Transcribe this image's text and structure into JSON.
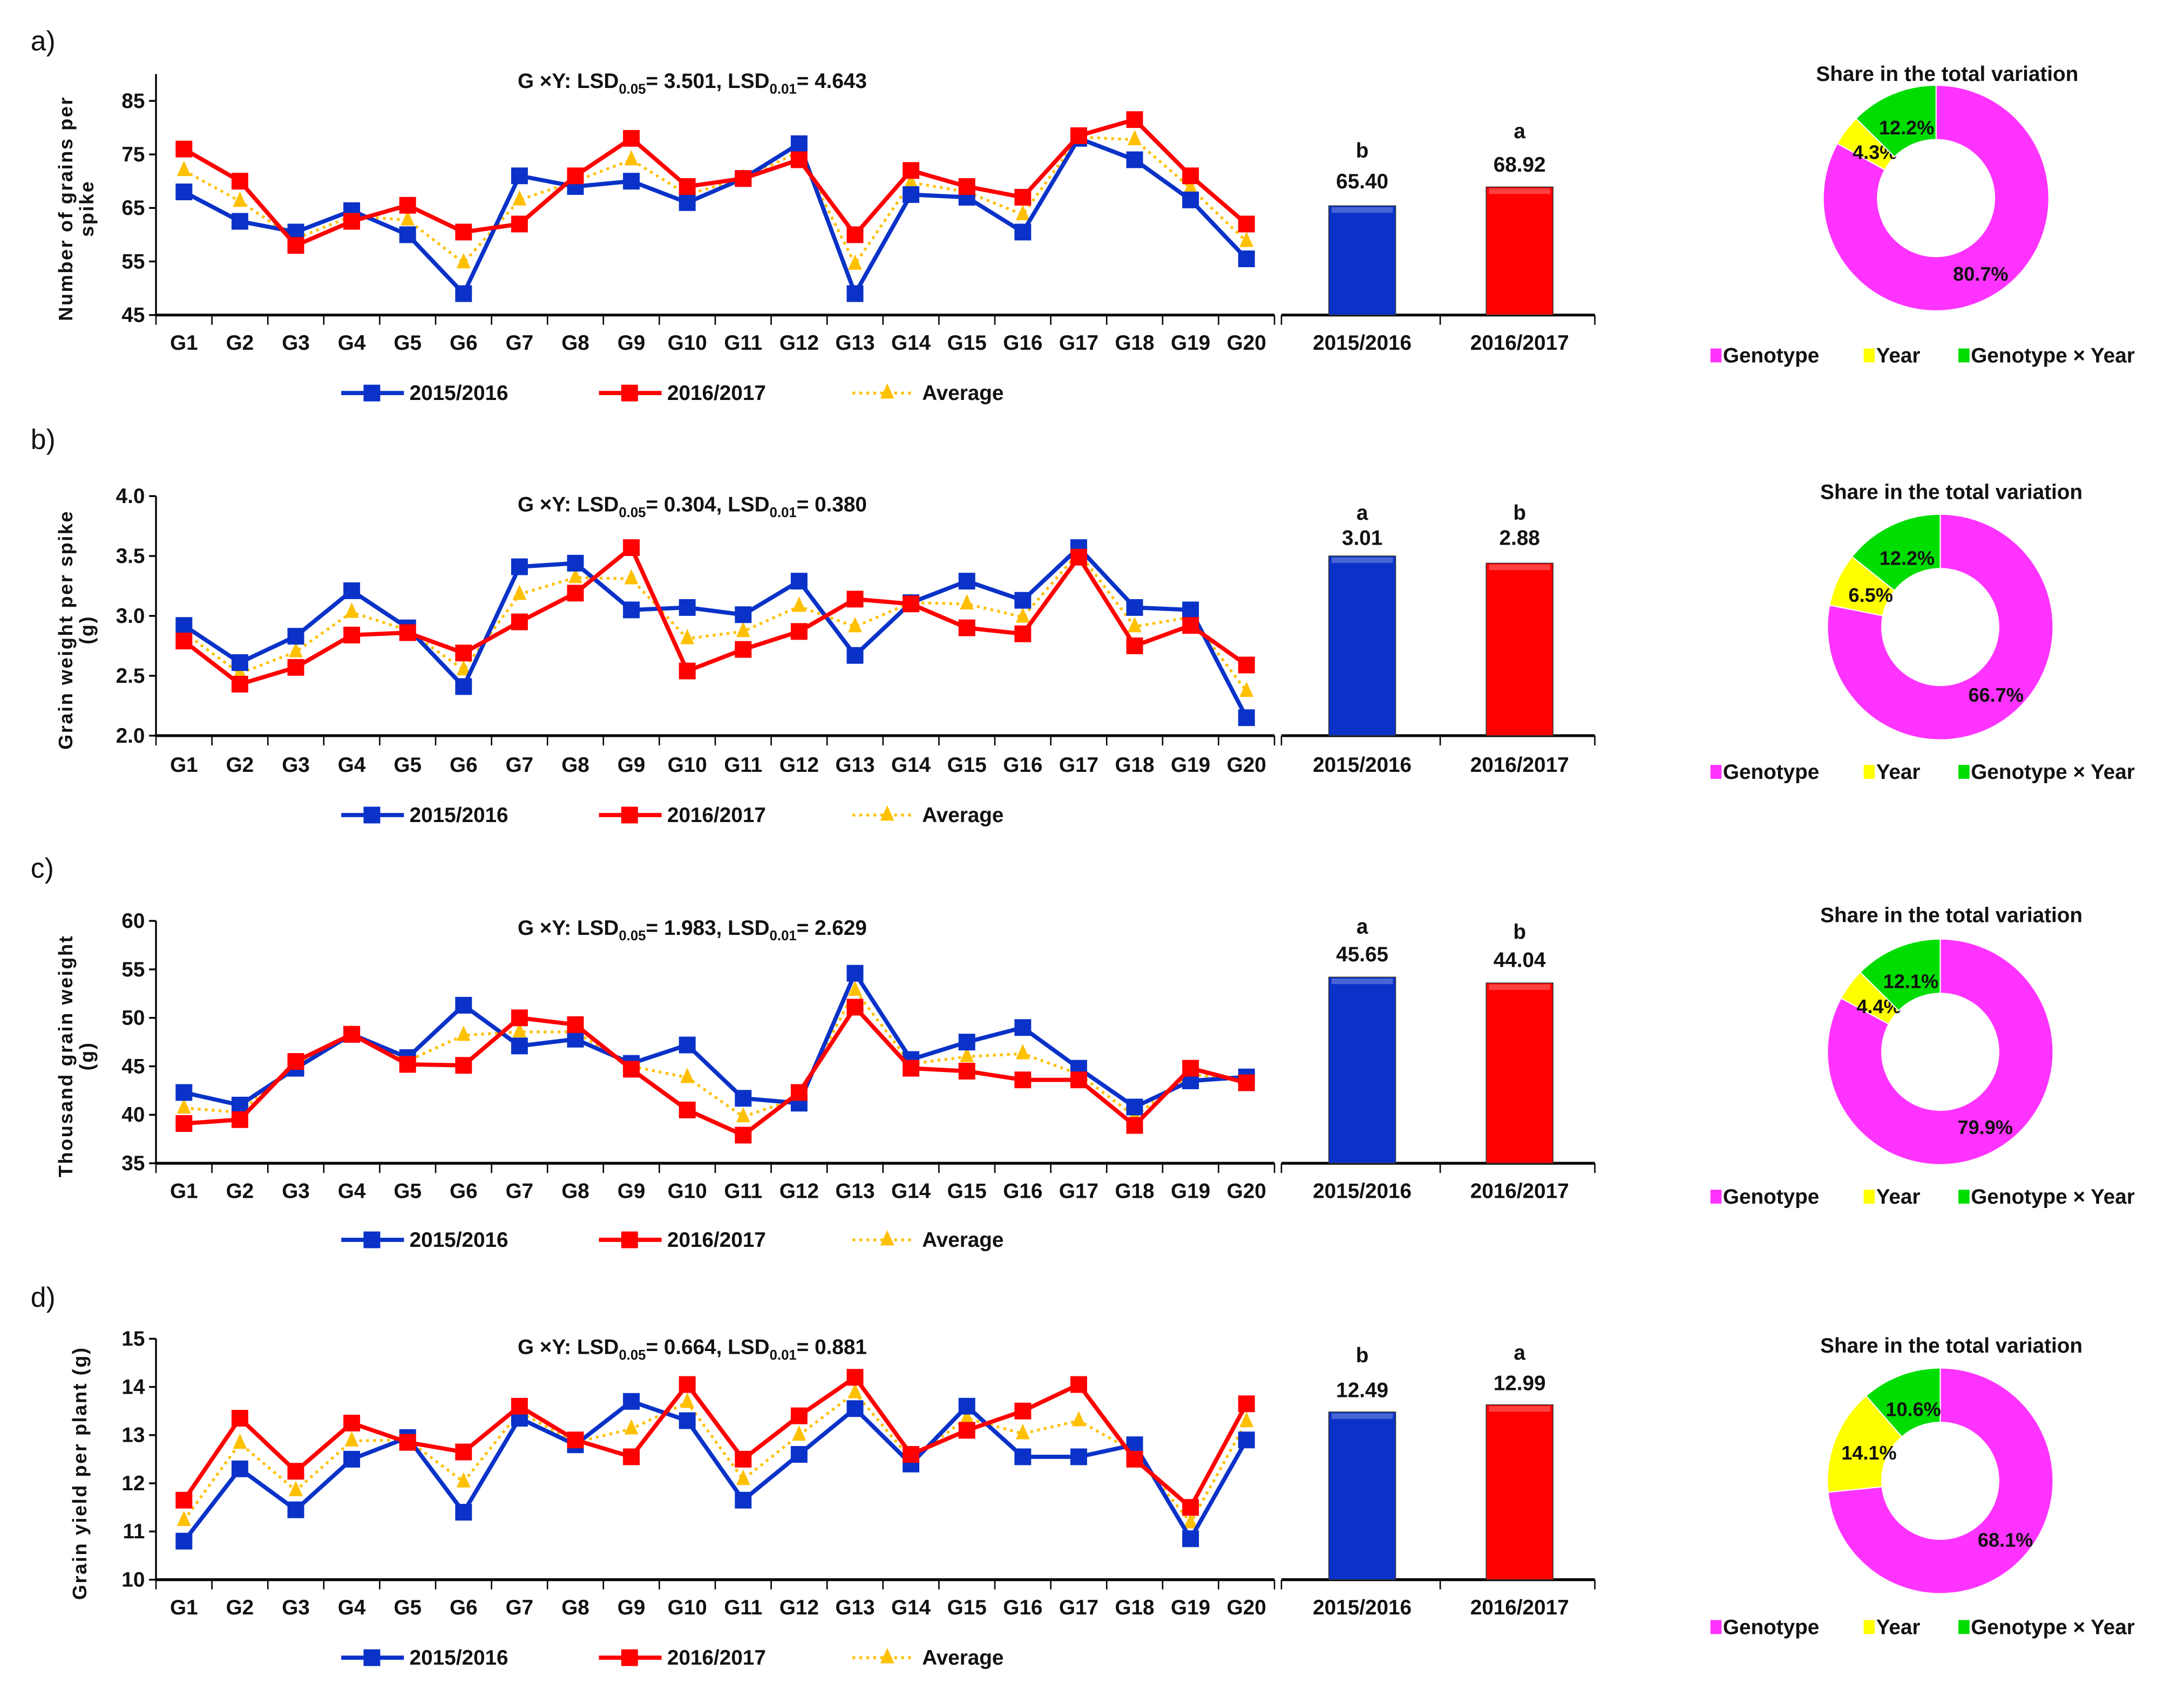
{
  "chart_data": [
    {
      "type": "line",
      "panel_label": "a)",
      "title_prefix": "G ×Y: LSD",
      "lsd05_sub": "0.05",
      "lsd05_value": "= 3.501, LSD",
      "lsd01_sub": "0.01",
      "lsd01_value": "= 4.643",
      "ylabel": [
        "Number of grains per",
        "spike"
      ],
      "ylim": [
        45,
        90
      ],
      "yticks": [
        45,
        55,
        65,
        75,
        85
      ],
      "yticklabels": [
        "45",
        "55",
        "65",
        "75",
        "85"
      ],
      "categories": [
        "G1",
        "G2",
        "G3",
        "G4",
        "G5",
        "G6",
        "G7",
        "G8",
        "G9",
        "G10",
        "G11",
        "G12",
        "G13",
        "G14",
        "G15",
        "G16",
        "G17",
        "G18",
        "G19",
        "G20"
      ],
      "series": [
        {
          "name": "2015/2016",
          "color": "#0a32c8",
          "values": [
            68,
            62.5,
            60.5,
            64.5,
            60,
            49,
            71,
            69,
            70,
            66,
            70.5,
            77,
            49,
            67.5,
            67,
            60.5,
            78,
            74,
            66.5,
            55.5
          ]
        },
        {
          "name": "2016/2017",
          "color": "#ff0000",
          "values": [
            76,
            70,
            58,
            62.5,
            65.5,
            60.5,
            62,
            71,
            78,
            69,
            70.5,
            74,
            60,
            72,
            69,
            67,
            78.5,
            81.5,
            71,
            62
          ]
        },
        {
          "name": "Average",
          "color": "#ffc000",
          "values": [
            72,
            66.25,
            59.25,
            63.5,
            62.75,
            54.75,
            66.5,
            70,
            74,
            67.5,
            70.5,
            75.5,
            54.5,
            69.75,
            68,
            63.75,
            78.25,
            77.75,
            68.75,
            58.75
          ]
        }
      ],
      "bars": [
        {
          "category": "2015/2016",
          "value": "65.40",
          "letter": "b",
          "drawn_level": 65.4,
          "color": "#0a32c8"
        },
        {
          "category": "2016/2017",
          "value": "68.92",
          "letter": "a",
          "drawn_level": 68.92,
          "color": "#ff0000"
        }
      ],
      "pie": {
        "title": "Share in the total variation",
        "slices": [
          {
            "name": "Genotype",
            "value": 80.7,
            "label": "80.7%",
            "color": "#ff33ff"
          },
          {
            "name": "Year",
            "value": 4.3,
            "label": "4.3%",
            "color": "#ffff00"
          },
          {
            "name": "Genotype × Year",
            "value": 12.2,
            "label": "12.2%",
            "color": "#00dd00"
          }
        ]
      }
    },
    {
      "type": "line",
      "panel_label": "b)",
      "title_prefix": "G ×Y: LSD",
      "lsd05_sub": "0.05",
      "lsd05_value": "= 0.304, LSD",
      "lsd01_sub": "0.01",
      "lsd01_value": "= 0.380",
      "ylabel": [
        "Grain weight per spike",
        "(g)"
      ],
      "ylim": [
        2.0,
        4.0
      ],
      "yticks": [
        2.0,
        2.5,
        3.0,
        3.5,
        4.0
      ],
      "yticklabels": [
        "2.0",
        "2.5",
        "3.0",
        "3.5",
        "4.0"
      ],
      "categories": [
        "G1",
        "G2",
        "G3",
        "G4",
        "G5",
        "G6",
        "G7",
        "G8",
        "G9",
        "G10",
        "G11",
        "G12",
        "G13",
        "G14",
        "G15",
        "G16",
        "G17",
        "G18",
        "G19",
        "G20"
      ],
      "series": [
        {
          "name": "2015/2016",
          "color": "#0a32c8",
          "values": [
            2.92,
            2.61,
            2.83,
            3.21,
            2.9,
            2.41,
            3.41,
            3.44,
            3.05,
            3.07,
            3.01,
            3.29,
            2.67,
            3.11,
            3.29,
            3.13,
            3.57,
            3.07,
            3.05,
            2.15
          ]
        },
        {
          "name": "2016/2017",
          "color": "#ff0000",
          "values": [
            2.79,
            2.43,
            2.57,
            2.84,
            2.86,
            2.69,
            2.95,
            3.19,
            3.57,
            2.54,
            2.72,
            2.87,
            3.14,
            3.1,
            2.9,
            2.85,
            3.49,
            2.75,
            2.92,
            2.59
          ]
        },
        {
          "name": "Average",
          "color": "#ffc000",
          "values": [
            2.86,
            2.52,
            2.7,
            3.03,
            2.88,
            2.55,
            3.18,
            3.32,
            3.31,
            2.81,
            2.87,
            3.08,
            2.91,
            3.11,
            3.1,
            2.99,
            3.53,
            2.91,
            2.99,
            2.37
          ]
        }
      ],
      "bars": [
        {
          "category": "2015/2016",
          "value": "3.01",
          "letter": "a",
          "drawn_level": 3.5,
          "color": "#0a32c8"
        },
        {
          "category": "2016/2017",
          "value": "2.88",
          "letter": "b",
          "drawn_level": 3.44,
          "color": "#ff0000"
        }
      ],
      "pie": {
        "title": "Share in the total variation",
        "slices": [
          {
            "name": "Genotype",
            "value": 66.7,
            "label": "66.7%",
            "color": "#ff33ff"
          },
          {
            "name": "Year",
            "value": 6.5,
            "label": "6.5%",
            "color": "#ffff00"
          },
          {
            "name": "Genotype × Year",
            "value": 12.2,
            "label": "12.2%",
            "color": "#00dd00"
          }
        ]
      }
    },
    {
      "type": "line",
      "panel_label": "c)",
      "title_prefix": "G ×Y: LSD",
      "lsd05_sub": "0.05",
      "lsd05_value": "= 1.983, LSD",
      "lsd01_sub": "0.01",
      "lsd01_value": "= 2.629",
      "ylabel": [
        "Thousand  grain weight",
        "(g)"
      ],
      "ylim": [
        35,
        60
      ],
      "yticks": [
        35,
        40,
        45,
        50,
        55,
        60
      ],
      "yticklabels": [
        "35",
        "40",
        "45",
        "50",
        "55",
        "60"
      ],
      "categories": [
        "G1",
        "G2",
        "G3",
        "G4",
        "G5",
        "G6",
        "G7",
        "G8",
        "G9",
        "G10",
        "G11",
        "G12",
        "G13",
        "G14",
        "G15",
        "G16",
        "G17",
        "G18",
        "G19",
        "G20"
      ],
      "series": [
        {
          "name": "2015/2016",
          "color": "#0a32c8",
          "values": [
            42.3,
            41.0,
            44.8,
            48.3,
            45.9,
            51.3,
            47.1,
            47.8,
            45.3,
            47.2,
            41.7,
            41.2,
            54.6,
            45.7,
            47.5,
            49.0,
            44.8,
            40.8,
            43.5,
            43.9
          ]
        },
        {
          "name": "2016/2017",
          "color": "#ff0000",
          "values": [
            39.1,
            39.5,
            45.5,
            48.3,
            45.2,
            45.1,
            50.0,
            49.3,
            44.7,
            40.5,
            37.9,
            42.3,
            51.1,
            44.8,
            44.5,
            43.6,
            43.6,
            38.9,
            44.8,
            43.3
          ]
        },
        {
          "name": "Average",
          "color": "#ffc000",
          "values": [
            40.7,
            40.25,
            45.15,
            48.3,
            45.55,
            48.2,
            48.55,
            48.55,
            45.0,
            43.85,
            39.8,
            41.75,
            52.85,
            45.25,
            46.0,
            46.3,
            44.2,
            39.85,
            44.15,
            43.6
          ]
        }
      ],
      "bars": [
        {
          "category": "2015/2016",
          "value": "45.65",
          "letter": "a",
          "drawn_level": 54.2,
          "color": "#0a32c8"
        },
        {
          "category": "2016/2017",
          "value": "44.04",
          "letter": "b",
          "drawn_level": 53.6,
          "color": "#ff0000"
        }
      ],
      "pie": {
        "title": "Share in the total variation",
        "slices": [
          {
            "name": "Genotype",
            "value": 79.9,
            "label": "79.9%",
            "color": "#ff33ff"
          },
          {
            "name": "Year",
            "value": 4.4,
            "label": "4.4%",
            "color": "#ffff00"
          },
          {
            "name": "Genotype × Year",
            "value": 12.1,
            "label": "12.1%",
            "color": "#00dd00"
          }
        ]
      }
    },
    {
      "type": "line",
      "panel_label": "d)",
      "title_prefix": "G ×Y: LSD",
      "lsd05_sub": "0.05",
      "lsd05_value": "= 0.664, LSD",
      "lsd01_sub": "0.01",
      "lsd01_value": "= 0.881",
      "ylabel": [
        "Grain yield per plant (g)"
      ],
      "ylim": [
        10,
        15
      ],
      "yticks": [
        10,
        11,
        12,
        13,
        14,
        15
      ],
      "yticklabels": [
        "10",
        "11",
        "12",
        "13",
        "14",
        "15"
      ],
      "categories": [
        "G1",
        "G2",
        "G3",
        "G4",
        "G5",
        "G6",
        "G7",
        "G8",
        "G9",
        "G10",
        "G11",
        "G12",
        "G13",
        "G14",
        "G15",
        "G16",
        "G17",
        "G18",
        "G19",
        "G20"
      ],
      "series": [
        {
          "name": "2015/2016",
          "color": "#0a32c8",
          "values": [
            10.8,
            12.3,
            11.45,
            12.5,
            12.95,
            11.4,
            13.35,
            12.8,
            13.7,
            13.3,
            11.65,
            12.6,
            13.55,
            12.4,
            13.6,
            12.55,
            12.55,
            12.8,
            10.85,
            12.9
          ]
        },
        {
          "name": "2016/2017",
          "color": "#ff0000",
          "values": [
            11.65,
            13.35,
            12.25,
            13.25,
            12.85,
            12.65,
            13.6,
            12.9,
            12.55,
            14.05,
            12.5,
            13.4,
            14.2,
            12.6,
            13.1,
            13.5,
            14.05,
            12.5,
            11.5,
            13.65
          ]
        },
        {
          "name": "Average",
          "color": "#ffc000",
          "values": [
            11.23,
            12.83,
            11.85,
            12.88,
            12.9,
            12.03,
            13.48,
            12.85,
            13.13,
            13.68,
            12.08,
            13.0,
            13.88,
            12.5,
            13.35,
            13.03,
            13.3,
            12.65,
            11.18,
            13.28
          ]
        }
      ],
      "bars": [
        {
          "category": "2015/2016",
          "value": "12.49",
          "letter": "b",
          "drawn_level": 13.48,
          "color": "#0a32c8"
        },
        {
          "category": "2016/2017",
          "value": "12.99",
          "letter": "a",
          "drawn_level": 13.63,
          "color": "#ff0000"
        }
      ],
      "pie": {
        "title": "Share in the total variation",
        "slices": [
          {
            "name": "Genotype",
            "value": 68.1,
            "label": "68.1%",
            "color": "#ff33ff"
          },
          {
            "name": "Year",
            "value": 14.1,
            "label": "14.1%",
            "color": "#ffff00"
          },
          {
            "name": "Genotype × Year",
            "value": 10.6,
            "label": "10.6%",
            "color": "#00dd00"
          }
        ]
      }
    }
  ]
}
